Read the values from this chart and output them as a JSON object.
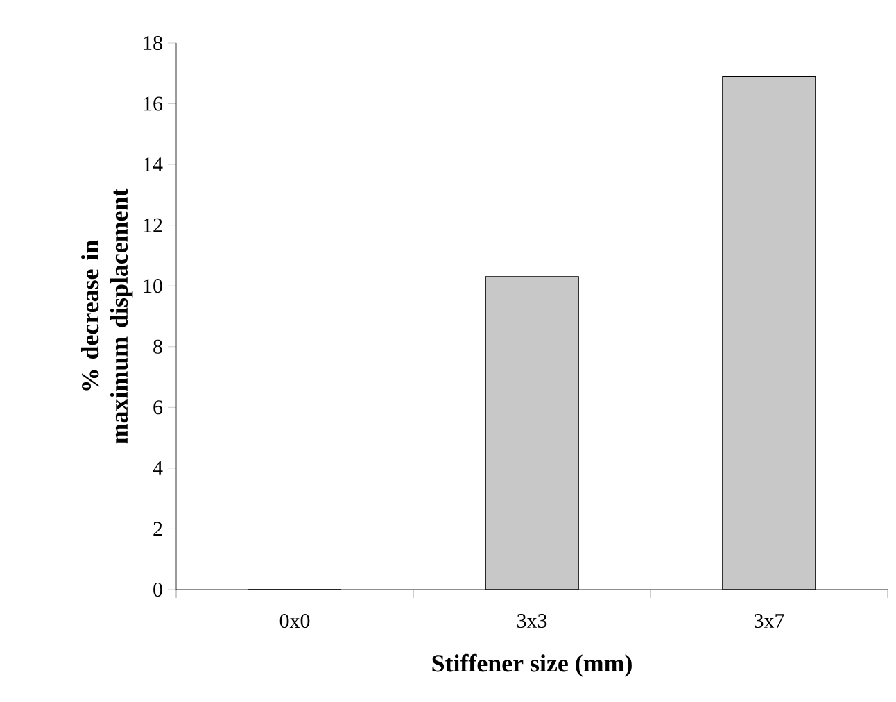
{
  "chart_data": {
    "type": "bar",
    "xlabel": "Stiffener size (mm)",
    "ylabel": "% decrease in maximum displacement",
    "categories": [
      "0x0",
      "3x3",
      "3x7"
    ],
    "values": [
      0,
      10.3,
      16.9
    ],
    "color": "#c8c8c8",
    "ylim": [
      0,
      18
    ],
    "yticks": [
      0,
      2,
      4,
      6,
      8,
      10,
      12,
      14,
      16,
      18
    ]
  }
}
